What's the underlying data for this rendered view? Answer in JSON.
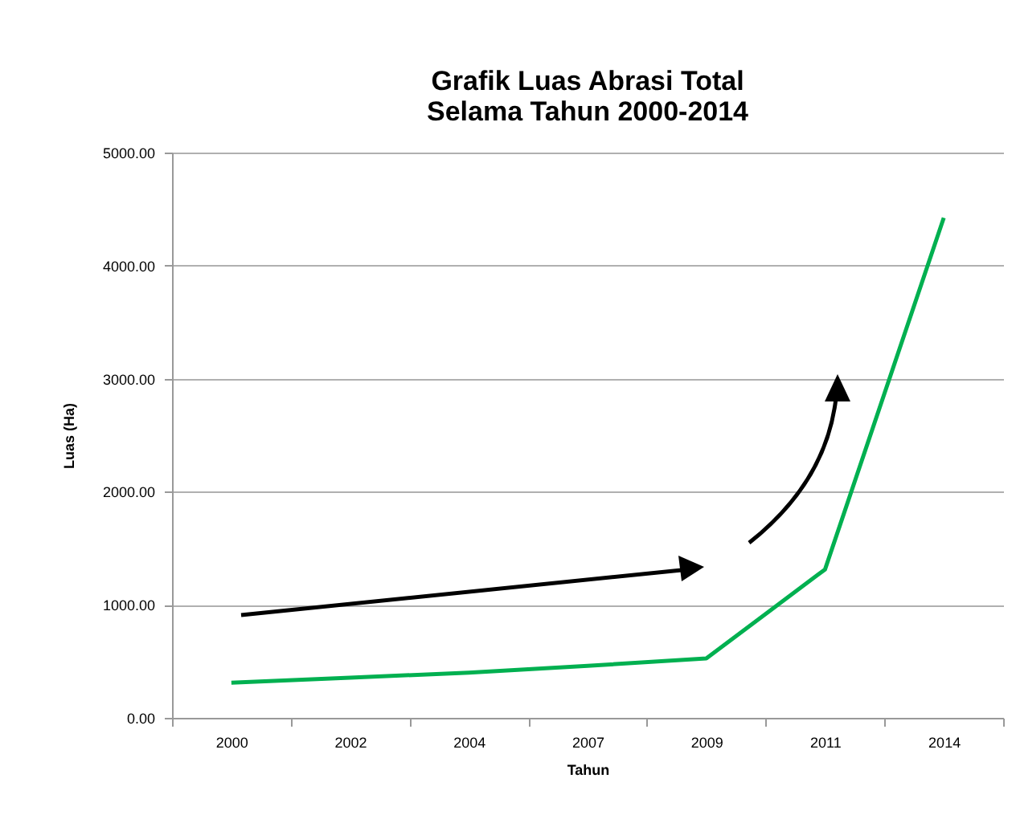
{
  "chart_data": {
    "type": "line",
    "title": "Grafik Luas Abrasi Total\nSelama Tahun 2000-2014",
    "xlabel": "Tahun",
    "ylabel": "Luas (Ha)",
    "categories": [
      "2000",
      "2002",
      "2004",
      "2007",
      "2009",
      "2011",
      "2014"
    ],
    "series": [
      {
        "color": "#00b050",
        "values": [
          310,
          355,
          400,
          460,
          525,
          1313,
          4423
        ]
      }
    ],
    "ylim": [
      0,
      5000
    ],
    "yticks": [
      {
        "value": 0,
        "label": "0.00"
      },
      {
        "value": 1000,
        "label": "1000.00"
      },
      {
        "value": 2000,
        "label": "2000.00"
      },
      {
        "value": 3000,
        "label": "3000.00"
      },
      {
        "value": 4000,
        "label": "4000.00"
      },
      {
        "value": 5000,
        "label": "5000.00"
      }
    ],
    "grid": "y",
    "legend": false,
    "marker": "none",
    "line_style": "solid"
  }
}
